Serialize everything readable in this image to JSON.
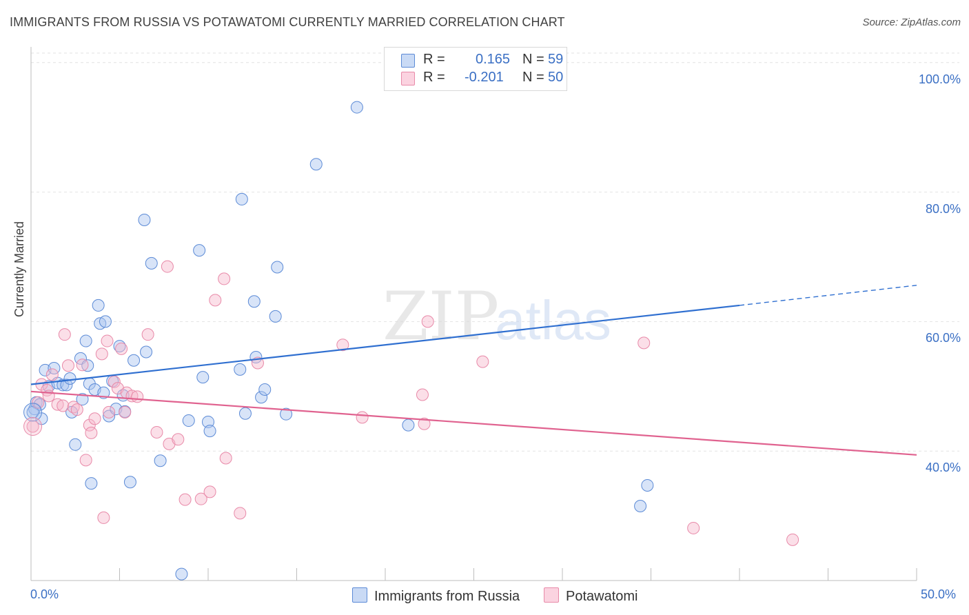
{
  "header": {
    "title": "IMMIGRANTS FROM RUSSIA VS POTAWATOMI CURRENTLY MARRIED CORRELATION CHART",
    "source": "Source: ZipAtlas.com"
  },
  "watermark": {
    "zip": "ZIP",
    "atlas": "atlas"
  },
  "legend": {
    "r_label": "R =",
    "n_label": "N =",
    "rows": [
      {
        "r_value": "0.165",
        "n_value": "59",
        "color": "#a9c4ef"
      },
      {
        "r_value": "-0.201",
        "n_value": "50",
        "color": "#f7b7cc"
      }
    ]
  },
  "bottom_legend": [
    {
      "label": "Immigrants from Russia",
      "color": "#a9c4ef"
    },
    {
      "label": "Potawatomi",
      "color": "#f7b7cc"
    }
  ],
  "colors": {
    "blue_fill": "#a9c4ef",
    "blue_stroke": "#5b8ad6",
    "blue_line": "#2f6fd0",
    "pink_fill": "#f7b7cc",
    "pink_stroke": "#e889a8",
    "pink_line": "#e0628f",
    "tick_text": "#3a6fc4"
  },
  "chart_data": {
    "type": "scatter",
    "title": "IMMIGRANTS FROM RUSSIA VS POTAWATOMI CURRENTLY MARRIED CORRELATION CHART",
    "xlabel": "",
    "ylabel": "Currently Married",
    "xlim": [
      0,
      50
    ],
    "ylim": [
      20,
      102
    ],
    "x_tick_labels": [
      "0.0%",
      "50.0%"
    ],
    "y_ticks": [
      {
        "value": 40,
        "label": "40.0%"
      },
      {
        "value": 60,
        "label": "60.0%"
      },
      {
        "value": 80,
        "label": "80.0%"
      },
      {
        "value": 100,
        "label": "100.0%"
      }
    ],
    "grid": "horizontal dashed",
    "legend_position": "top-center",
    "series": [
      {
        "name": "Immigrants from Russia",
        "r": 0.165,
        "n": 59,
        "trend": {
          "x0": 0,
          "y0": 50.3,
          "x1": 40,
          "y1": 62.5,
          "x_dash_end": 50,
          "y_dash_end": 65.6
        },
        "points": [
          [
            0.2,
            46.5
          ],
          [
            0.3,
            47.5
          ],
          [
            0.5,
            47.2
          ],
          [
            0.6,
            45.0
          ],
          [
            0.8,
            52.5
          ],
          [
            1.0,
            50.0
          ],
          [
            1.3,
            52.8
          ],
          [
            1.5,
            50.5
          ],
          [
            1.8,
            50.2
          ],
          [
            2.0,
            50.2
          ],
          [
            2.2,
            51.2
          ],
          [
            2.3,
            46.0
          ],
          [
            2.5,
            41.0
          ],
          [
            2.8,
            54.3
          ],
          [
            2.9,
            48.0
          ],
          [
            3.1,
            57.0
          ],
          [
            3.2,
            53.2
          ],
          [
            3.3,
            50.4
          ],
          [
            3.4,
            35.0
          ],
          [
            3.6,
            49.5
          ],
          [
            3.8,
            62.5
          ],
          [
            3.9,
            59.7
          ],
          [
            4.1,
            49.0
          ],
          [
            4.2,
            60.0
          ],
          [
            4.4,
            45.4
          ],
          [
            4.6,
            50.8
          ],
          [
            4.8,
            46.5
          ],
          [
            5.0,
            56.2
          ],
          [
            5.2,
            48.6
          ],
          [
            5.3,
            46.1
          ],
          [
            5.6,
            35.2
          ],
          [
            5.8,
            54.0
          ],
          [
            6.4,
            75.7
          ],
          [
            6.5,
            55.3
          ],
          [
            6.8,
            69.0
          ],
          [
            7.3,
            38.5
          ],
          [
            8.5,
            21.0
          ],
          [
            8.9,
            44.7
          ],
          [
            9.5,
            71.0
          ],
          [
            9.7,
            51.4
          ],
          [
            10.0,
            44.5
          ],
          [
            10.1,
            43.1
          ],
          [
            11.8,
            52.6
          ],
          [
            11.9,
            78.9
          ],
          [
            12.1,
            45.8
          ],
          [
            12.6,
            63.1
          ],
          [
            12.7,
            54.5
          ],
          [
            13.0,
            48.3
          ],
          [
            13.2,
            49.5
          ],
          [
            13.8,
            60.8
          ],
          [
            13.9,
            68.4
          ],
          [
            14.4,
            45.7
          ],
          [
            16.1,
            84.3
          ],
          [
            18.4,
            93.1
          ],
          [
            21.3,
            44.0
          ],
          [
            27.2,
            100.0
          ],
          [
            34.4,
            31.5
          ],
          [
            34.8,
            34.7
          ],
          [
            0.1,
            46.0
          ]
        ]
      },
      {
        "name": "Potawatomi",
        "r": -0.201,
        "n": 50,
        "trend": {
          "x0": 0,
          "y0": 49.2,
          "x1": 50,
          "y1": 39.4
        },
        "points": [
          [
            0.1,
            43.8
          ],
          [
            0.4,
            47.5
          ],
          [
            0.6,
            50.3
          ],
          [
            0.9,
            49.4
          ],
          [
            1.0,
            48.5
          ],
          [
            1.2,
            51.8
          ],
          [
            1.5,
            47.2
          ],
          [
            1.8,
            47.0
          ],
          [
            1.9,
            58.0
          ],
          [
            2.1,
            53.2
          ],
          [
            2.4,
            46.8
          ],
          [
            2.6,
            46.4
          ],
          [
            2.9,
            53.3
          ],
          [
            3.1,
            38.6
          ],
          [
            3.3,
            44.0
          ],
          [
            3.4,
            42.8
          ],
          [
            3.6,
            45.0
          ],
          [
            4.0,
            55.0
          ],
          [
            4.1,
            29.7
          ],
          [
            4.3,
            57.0
          ],
          [
            4.4,
            46.0
          ],
          [
            4.7,
            50.7
          ],
          [
            4.9,
            49.7
          ],
          [
            5.1,
            55.8
          ],
          [
            5.3,
            46.0
          ],
          [
            5.4,
            49.0
          ],
          [
            5.7,
            48.5
          ],
          [
            6.0,
            48.4
          ],
          [
            6.6,
            58.0
          ],
          [
            7.1,
            42.9
          ],
          [
            7.7,
            68.5
          ],
          [
            7.8,
            41.1
          ],
          [
            8.3,
            41.8
          ],
          [
            8.7,
            32.5
          ],
          [
            9.6,
            32.6
          ],
          [
            10.1,
            33.7
          ],
          [
            10.4,
            63.3
          ],
          [
            10.9,
            66.6
          ],
          [
            11.0,
            38.9
          ],
          [
            11.8,
            30.4
          ],
          [
            12.8,
            53.6
          ],
          [
            17.6,
            56.4
          ],
          [
            18.7,
            45.2
          ],
          [
            22.1,
            48.7
          ],
          [
            22.2,
            44.2
          ],
          [
            22.4,
            60.0
          ],
          [
            25.5,
            53.8
          ],
          [
            34.6,
            56.7
          ],
          [
            37.4,
            28.1
          ],
          [
            43.0,
            26.3
          ]
        ]
      }
    ]
  }
}
